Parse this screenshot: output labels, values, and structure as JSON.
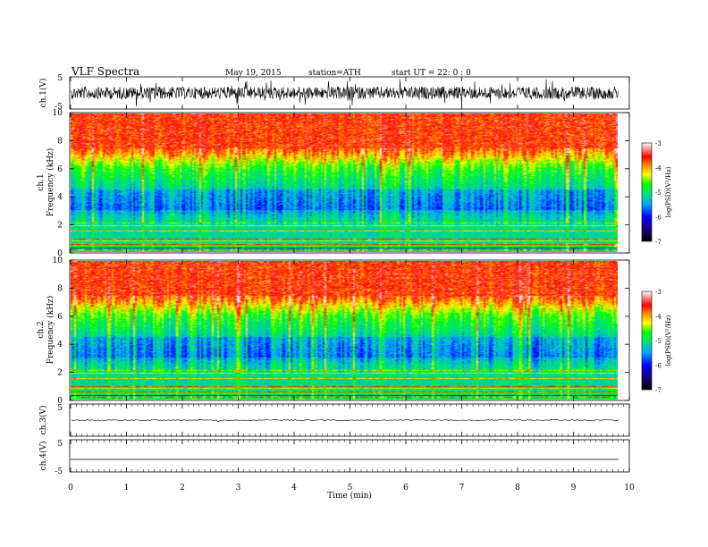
{
  "header": {
    "title": "VLF  Spectra",
    "date": "May 19, 2015",
    "station": "station=ATH",
    "start": "start  UT  =    22: 0  : 0"
  },
  "chart_data": [
    {
      "id": "ch1-waveform",
      "type": "line",
      "ylabel": "ch.1(V)",
      "ylim": [
        -5,
        5
      ],
      "yticks": [
        "5",
        "-5"
      ],
      "xlim": [
        0,
        10
      ],
      "description": "dense noisy waveform, amplitude ~±3 V"
    },
    {
      "id": "ch1-spectrogram",
      "type": "heatmap",
      "ylabel": "ch.1",
      "ylabel2": "Frequency  (kHz)",
      "ylim": [
        0,
        10
      ],
      "yticks": [
        "0",
        "2",
        "4",
        "6",
        "8",
        "10"
      ],
      "xlim": [
        0,
        9.8
      ],
      "colorbar": {
        "label": "log(PSD)(V²/Hz)",
        "range": [
          -7,
          -3
        ],
        "ticks": [
          "-3",
          "-4",
          "-5",
          "-6",
          "-7"
        ]
      }
    },
    {
      "id": "ch2-spectrogram",
      "type": "heatmap",
      "ylabel": "ch.2",
      "ylabel2": "Frequency  (kHz)",
      "ylim": [
        0,
        10
      ],
      "yticks": [
        "0",
        "2",
        "4",
        "6",
        "8",
        "10"
      ],
      "xlim": [
        0,
        9.8
      ],
      "colorbar": {
        "label": "log(PSD)(V²/Hz)",
        "range": [
          -7,
          -3
        ],
        "ticks": [
          "-3",
          "-4",
          "-5",
          "-6",
          "-7"
        ]
      }
    },
    {
      "id": "ch3-waveform",
      "type": "line",
      "ylabel": "ch.3(V)",
      "ylim": [
        -5,
        5
      ],
      "yticks": [
        "5"
      ],
      "description": "flat trace near 0 V"
    },
    {
      "id": "ch4-waveform",
      "type": "line",
      "ylabel": "ch.4(V)",
      "ylim": [
        -5,
        5
      ],
      "yticks": [
        "5",
        "-5"
      ],
      "description": "flat trace near 0 V"
    }
  ],
  "xaxis": {
    "label": "Time  (min)",
    "range": [
      0,
      10
    ],
    "ticks": [
      "0",
      "1",
      "2",
      "3",
      "4",
      "5",
      "6",
      "7",
      "8",
      "9",
      "10"
    ]
  }
}
